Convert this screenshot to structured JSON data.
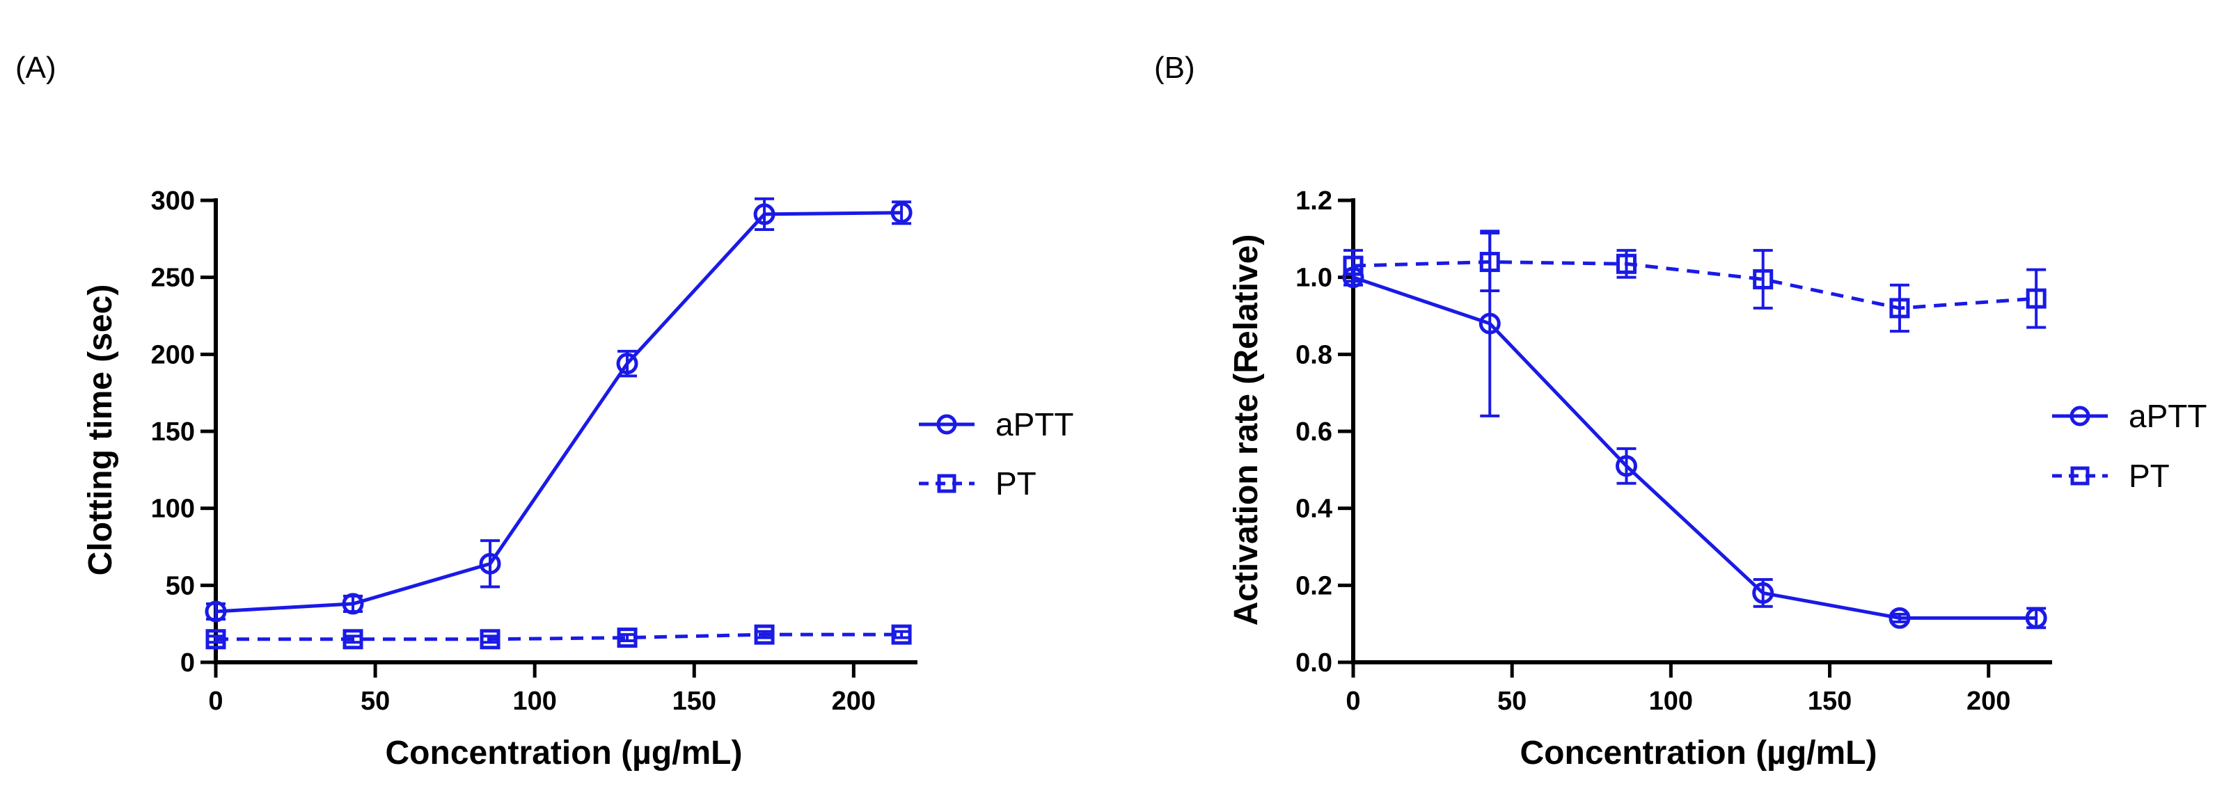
{
  "colors": {
    "series": "#1a1ae6",
    "axis": "#000000"
  },
  "chart_data": [
    {
      "panel": "(A)",
      "type": "line",
      "xlabel": "Concentration (µg/mL)",
      "ylabel": "Clotting time (sec)",
      "xlim": [
        0,
        220
      ],
      "ylim": [
        0,
        300
      ],
      "xticks": [
        0,
        50,
        100,
        150,
        200
      ],
      "yticks": [
        0,
        50,
        100,
        150,
        200,
        250,
        300
      ],
      "legend_position": "right",
      "x": [
        0,
        43,
        86,
        129,
        172,
        215
      ],
      "series": [
        {
          "name": "aPTT",
          "marker": "circle",
          "dash": "solid",
          "values": [
            33,
            38,
            64,
            194,
            291,
            292
          ],
          "errors": [
            5,
            5,
            15,
            8,
            10,
            7
          ]
        },
        {
          "name": "PT",
          "marker": "square",
          "dash": "dashed",
          "values": [
            15,
            15,
            15,
            16,
            18,
            18
          ],
          "errors": [
            2,
            2,
            2,
            2,
            2,
            2
          ]
        }
      ]
    },
    {
      "panel": "(B)",
      "type": "line",
      "xlabel": "Concentration (µg/mL)",
      "ylabel": "Activation rate (Relative)",
      "xlim": [
        0,
        220
      ],
      "ylim": [
        0,
        1.2
      ],
      "xticks": [
        0,
        50,
        100,
        150,
        200
      ],
      "yticks": [
        0.0,
        0.2,
        0.4,
        0.6,
        0.8,
        1.0,
        1.2
      ],
      "ytick_labels": [
        "0.0",
        "0.2",
        "0.4",
        "0.6",
        "0.8",
        "1.0",
        "1.2"
      ],
      "legend_position": "right",
      "x": [
        0,
        43,
        86,
        129,
        172,
        215
      ],
      "series": [
        {
          "name": "aPTT",
          "marker": "circle",
          "dash": "solid",
          "values": [
            1.0,
            0.88,
            0.51,
            0.18,
            0.115,
            0.115
          ],
          "errors": [
            0.02,
            0.24,
            0.045,
            0.035,
            0.01,
            0.025
          ]
        },
        {
          "name": "PT",
          "marker": "square",
          "dash": "dashed",
          "values": [
            1.03,
            1.04,
            1.035,
            0.995,
            0.92,
            0.945
          ],
          "errors": [
            0.04,
            0.075,
            0.035,
            0.075,
            0.06,
            0.075
          ]
        }
      ]
    }
  ]
}
